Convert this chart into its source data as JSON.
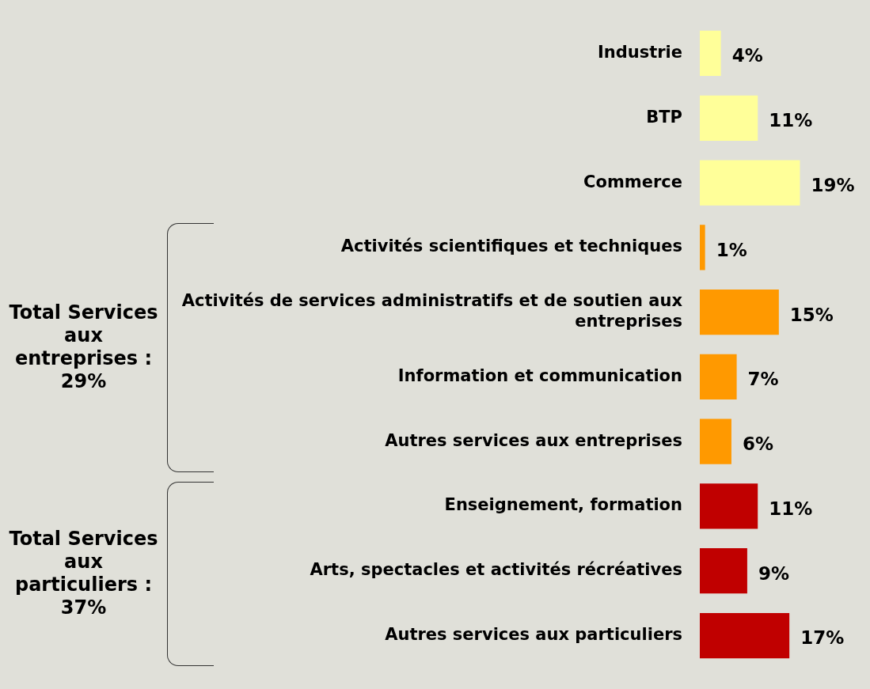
{
  "chart_data": {
    "type": "bar",
    "orientation": "horizontal",
    "categories": [
      "Industrie",
      "BTP",
      "Commerce",
      "Activités scientifiques et techniques",
      "Activités de services administratifs et de soutien aux entreprises",
      "Information et communication",
      "Autres services aux entreprises",
      "Enseignement, formation",
      "Arts, spectacles et activités récréatives",
      "Autres services aux particuliers"
    ],
    "values": [
      4,
      11,
      19,
      1,
      15,
      7,
      6,
      11,
      9,
      17
    ],
    "colors": [
      "#ffff99",
      "#ffff99",
      "#ffff99",
      "#ff9900",
      "#ff9900",
      "#ff9900",
      "#ff9900",
      "#c00000",
      "#c00000",
      "#c00000"
    ],
    "value_labels": [
      "4%",
      "11%",
      "19%",
      "1%",
      "15%",
      "7%",
      "6%",
      "11%",
      "9%",
      "17%"
    ],
    "annotations": [
      "Total Services aux entreprises : 29%",
      "Total Services aux particuliers : 37%"
    ],
    "grid": false,
    "legend": false,
    "tick_labels": "y"
  }
}
